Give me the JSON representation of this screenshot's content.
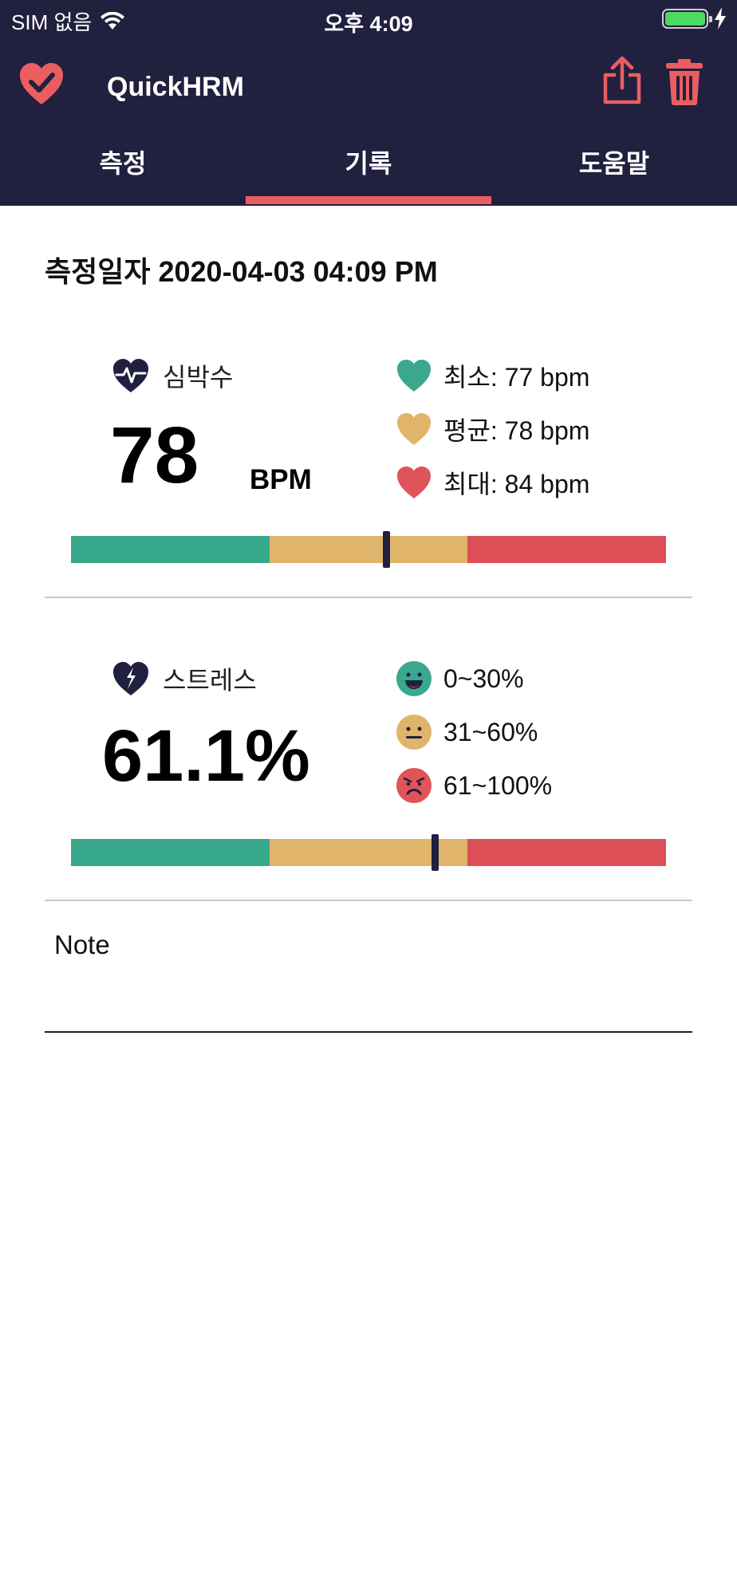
{
  "status_bar": {
    "carrier": "SIM 없음",
    "time": "오후 4:09"
  },
  "app_bar": {
    "title": "QuickHRM"
  },
  "tabs": [
    {
      "label": "측정"
    },
    {
      "label": "기록"
    },
    {
      "label": "도움말"
    }
  ],
  "selected_tab": "기록",
  "record": {
    "date_text": "측정일자 2020-04-03 04:09 PM"
  },
  "heart_rate": {
    "label": "심박수",
    "value": "78",
    "unit": "BPM",
    "legend": [
      {
        "text": "최소: 77 bpm",
        "color": "#3aa88c"
      },
      {
        "text": "평균: 78 bpm",
        "color": "#e0b46a"
      },
      {
        "text": "최대: 84 bpm",
        "color": "#e05358"
      }
    ],
    "gauge_level": 0.53
  },
  "stress": {
    "label": "스트레스",
    "value": "61.1%",
    "legend": [
      {
        "text": "0~30%",
        "color": "#3aa88c"
      },
      {
        "text": "31~60%",
        "color": "#e0b46a"
      },
      {
        "text": "61~100%",
        "color": "#e05358"
      }
    ],
    "gauge_level": 0.611
  },
  "gauge_colors": [
    "#37a88a",
    "#e0b46a",
    "#dd4f57"
  ],
  "note": {
    "label": "Note"
  },
  "colors": {
    "header_bg": "#21203f",
    "accent": "#ea5e60",
    "icon_dark": "#21203f"
  }
}
